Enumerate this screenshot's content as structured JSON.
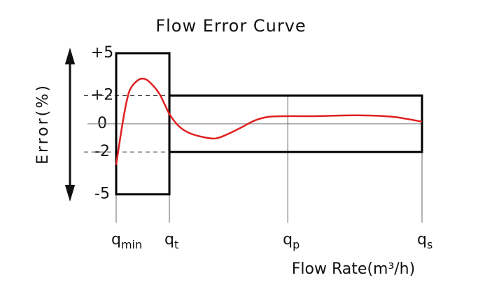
{
  "chart_data": {
    "type": "line",
    "title": "Flow Error Curve",
    "x_label": "Flow Rate(m³/h)",
    "y_label": "Error(%)",
    "xlim": [
      0,
      100
    ],
    "ylim": [
      -7,
      5
    ],
    "xticks": [
      {
        "value": 0,
        "label": "q",
        "subscript": "min"
      },
      {
        "value": 17.4,
        "label": "q",
        "subscript": "t"
      },
      {
        "value": 56.1,
        "label": "q",
        "subscript": "p"
      },
      {
        "value": 100,
        "label": "q",
        "subscripts_note_free": null,
        "subscript": "s"
      }
    ],
    "yticks": [
      {
        "value": 5,
        "label": "+5"
      },
      {
        "value": 2,
        "label": "+2"
      },
      0,
      -2,
      -5
    ],
    "limits": [
      {
        "from": 0,
        "to": 17.4,
        "upper": 5,
        "lower": -5
      },
      {
        "from": 17.4,
        "to": 100,
        "upper": 2,
        "lower": -2
      }
    ],
    "series": [
      {
        "color": "#e02020",
        "x": [
          0,
          1.4,
          2.7,
          4.3,
          6.6,
          8.9,
          11.2,
          14.2,
          17.4,
          20.4,
          23.8,
          28.4,
          32.5,
          36.4,
          41,
          45.5,
          50.1,
          56.1,
          65,
          78.7,
          90.2,
          100
        ],
        "values": [
          -2.9,
          -0.9,
          0.8,
          2.3,
          3.0,
          3.2,
          2.9,
          2.1,
          0.7,
          -0.15,
          -0.64,
          -0.94,
          -1.04,
          -0.74,
          -0.25,
          0.25,
          0.5,
          0.54,
          0.54,
          0.6,
          0.5,
          0.15
        ]
      }
    ]
  }
}
